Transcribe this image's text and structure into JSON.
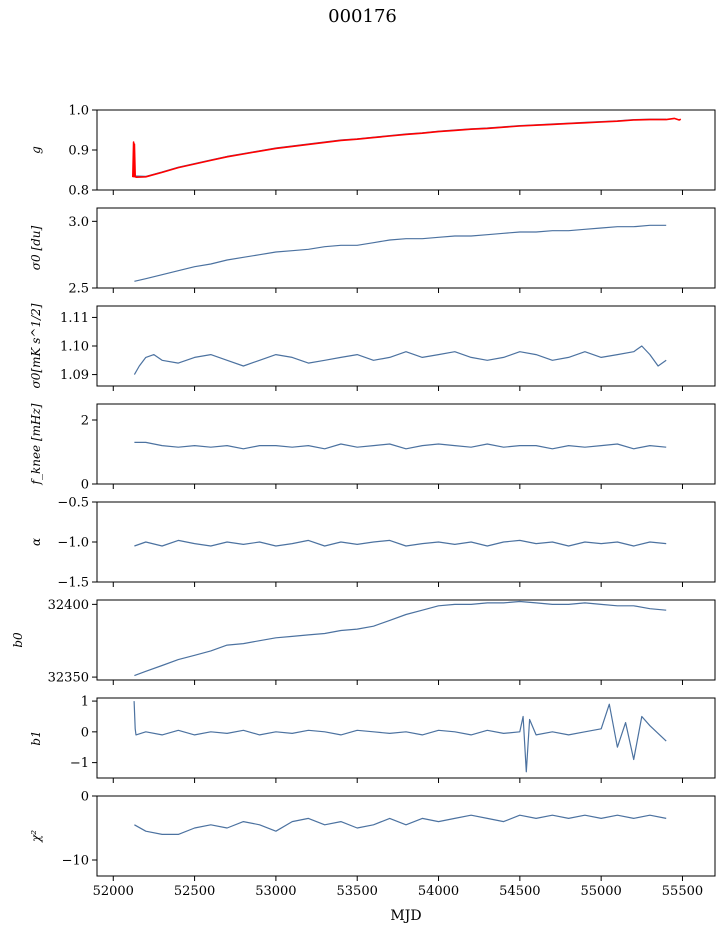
{
  "title": "000176",
  "xlabel": "MJD",
  "colors": {
    "series": "#4c72a0",
    "model": "#ff0000",
    "axes": "#000000"
  },
  "chart_data": [
    {
      "type": "line",
      "ylabel": "g",
      "ylim": [
        0.8,
        1.0
      ],
      "yticks": [
        "1.0",
        "0.9",
        "0.8"
      ],
      "yticks_values": [
        1.0,
        0.9,
        0.8
      ],
      "series": [
        {
          "color": "#4c72a0",
          "x": [
            52130,
            52200,
            52300,
            52400,
            52500,
            52600,
            52700,
            52800,
            52900,
            53000,
            53100,
            53200,
            53300,
            53400,
            53500,
            53600,
            53700,
            53800,
            53900,
            54000,
            54100,
            54200,
            54300,
            54400,
            54500,
            54600,
            54700,
            54800,
            54900,
            55000,
            55100,
            55200,
            55300,
            55400
          ],
          "y": [
            0.835,
            0.834,
            0.845,
            0.857,
            0.866,
            0.875,
            0.884,
            0.891,
            0.898,
            0.905,
            0.91,
            0.915,
            0.92,
            0.925,
            0.928,
            0.932,
            0.936,
            0.94,
            0.943,
            0.947,
            0.95,
            0.953,
            0.955,
            0.958,
            0.961,
            0.963,
            0.965,
            0.967,
            0.969,
            0.971,
            0.973,
            0.976,
            0.977,
            0.977
          ]
        },
        {
          "color": "#ff0000",
          "x": [
            52120,
            52125,
            52128,
            52130,
            52135,
            52140,
            52200,
            52300,
            52400,
            52500,
            52600,
            52700,
            52800,
            52900,
            53000,
            53100,
            53200,
            53300,
            53400,
            53500,
            53600,
            53700,
            53800,
            53900,
            54000,
            54100,
            54200,
            54300,
            54400,
            54500,
            54600,
            54700,
            54800,
            54900,
            55000,
            55100,
            55200,
            55300,
            55400,
            55450,
            55480,
            55490
          ],
          "y": [
            0.832,
            0.92,
            0.833,
            0.915,
            0.834,
            0.832,
            0.833,
            0.844,
            0.856,
            0.865,
            0.874,
            0.883,
            0.89,
            0.897,
            0.904,
            0.909,
            0.914,
            0.919,
            0.924,
            0.927,
            0.931,
            0.935,
            0.939,
            0.942,
            0.946,
            0.949,
            0.952,
            0.954,
            0.957,
            0.96,
            0.962,
            0.964,
            0.966,
            0.968,
            0.97,
            0.972,
            0.975,
            0.976,
            0.976,
            0.979,
            0.975,
            0.977
          ]
        }
      ]
    },
    {
      "type": "line",
      "ylabel": "σ0 [du]",
      "ylim": [
        2.5,
        3.1
      ],
      "yticks": [
        "3.0",
        "2.5"
      ],
      "yticks_values": [
        3.0,
        2.5
      ],
      "series": [
        {
          "color": "#4c72a0",
          "x": [
            52130,
            52200,
            52300,
            52400,
            52500,
            52600,
            52700,
            52800,
            52900,
            53000,
            53100,
            53200,
            53300,
            53400,
            53500,
            53600,
            53700,
            53800,
            53900,
            54000,
            54100,
            54200,
            54300,
            54400,
            54500,
            54600,
            54700,
            54800,
            54900,
            55000,
            55100,
            55200,
            55300,
            55400
          ],
          "y": [
            2.55,
            2.57,
            2.6,
            2.63,
            2.66,
            2.68,
            2.71,
            2.73,
            2.75,
            2.77,
            2.78,
            2.79,
            2.81,
            2.82,
            2.82,
            2.84,
            2.86,
            2.87,
            2.87,
            2.88,
            2.89,
            2.89,
            2.9,
            2.91,
            2.92,
            2.92,
            2.93,
            2.93,
            2.94,
            2.95,
            2.96,
            2.96,
            2.97,
            2.97
          ]
        }
      ]
    },
    {
      "type": "line",
      "ylabel": "σ0[mK s^1/2]",
      "ylim": [
        1.086,
        1.114
      ],
      "yticks": [
        "1.11",
        "1.10",
        "1.09"
      ],
      "yticks_values": [
        1.11,
        1.1,
        1.09
      ],
      "series": [
        {
          "color": "#4c72a0",
          "x": [
            52130,
            52160,
            52200,
            52250,
            52300,
            52400,
            52500,
            52600,
            52700,
            52800,
            52900,
            53000,
            53100,
            53200,
            53300,
            53400,
            53500,
            53600,
            53700,
            53800,
            53900,
            54000,
            54100,
            54200,
            54300,
            54400,
            54500,
            54600,
            54700,
            54800,
            54900,
            55000,
            55100,
            55200,
            55250,
            55300,
            55350,
            55400
          ],
          "y": [
            1.09,
            1.093,
            1.096,
            1.097,
            1.095,
            1.094,
            1.096,
            1.097,
            1.095,
            1.093,
            1.095,
            1.097,
            1.096,
            1.094,
            1.095,
            1.096,
            1.097,
            1.095,
            1.096,
            1.098,
            1.096,
            1.097,
            1.098,
            1.096,
            1.095,
            1.096,
            1.098,
            1.097,
            1.095,
            1.096,
            1.098,
            1.096,
            1.097,
            1.098,
            1.1,
            1.097,
            1.093,
            1.095
          ]
        }
      ]
    },
    {
      "type": "line",
      "ylabel": "f_knee [mHz]",
      "ylim": [
        0,
        2.5
      ],
      "yticks": [
        "2",
        "0"
      ],
      "yticks_values": [
        2,
        0
      ],
      "series": [
        {
          "color": "#4c72a0",
          "x": [
            52130,
            52200,
            52300,
            52400,
            52500,
            52600,
            52700,
            52800,
            52900,
            53000,
            53100,
            53200,
            53300,
            53400,
            53500,
            53600,
            53700,
            53800,
            53900,
            54000,
            54100,
            54200,
            54300,
            54400,
            54500,
            54600,
            54700,
            54800,
            54900,
            55000,
            55100,
            55200,
            55300,
            55400
          ],
          "y": [
            1.3,
            1.3,
            1.2,
            1.15,
            1.2,
            1.15,
            1.2,
            1.1,
            1.2,
            1.2,
            1.15,
            1.2,
            1.1,
            1.25,
            1.15,
            1.2,
            1.25,
            1.1,
            1.2,
            1.25,
            1.2,
            1.15,
            1.25,
            1.15,
            1.2,
            1.2,
            1.1,
            1.2,
            1.15,
            1.2,
            1.25,
            1.1,
            1.2,
            1.15
          ]
        }
      ]
    },
    {
      "type": "line",
      "ylabel": "α",
      "ylim": [
        -1.5,
        -0.5
      ],
      "yticks": [
        "−0.5",
        "−1.0",
        "−1.5"
      ],
      "yticks_values": [
        -0.5,
        -1.0,
        -1.5
      ],
      "series": [
        {
          "color": "#4c72a0",
          "x": [
            52130,
            52200,
            52300,
            52400,
            52500,
            52600,
            52700,
            52800,
            52900,
            53000,
            53100,
            53200,
            53300,
            53400,
            53500,
            53600,
            53700,
            53800,
            53900,
            54000,
            54100,
            54200,
            54300,
            54400,
            54500,
            54600,
            54700,
            54800,
            54900,
            55000,
            55100,
            55200,
            55300,
            55400
          ],
          "y": [
            -1.05,
            -1.0,
            -1.05,
            -0.98,
            -1.02,
            -1.05,
            -1.0,
            -1.03,
            -1.0,
            -1.05,
            -1.02,
            -0.98,
            -1.05,
            -1.0,
            -1.03,
            -1.0,
            -0.98,
            -1.05,
            -1.02,
            -1.0,
            -1.03,
            -1.0,
            -1.05,
            -1.0,
            -0.98,
            -1.02,
            -1.0,
            -1.05,
            -1.0,
            -1.02,
            -1.0,
            -1.05,
            -1.0,
            -1.02
          ]
        }
      ]
    },
    {
      "type": "line",
      "ylabel": "b0",
      "ylim": [
        32348,
        32403
      ],
      "yticks": [
        "32400",
        "32350"
      ],
      "yticks_values": [
        32400,
        32350
      ],
      "series": [
        {
          "color": "#4c72a0",
          "x": [
            52130,
            52200,
            52300,
            52400,
            52500,
            52600,
            52700,
            52800,
            52900,
            53000,
            53100,
            53200,
            53300,
            53400,
            53500,
            53600,
            53700,
            53800,
            53900,
            54000,
            54100,
            54200,
            54300,
            54400,
            54500,
            54600,
            54700,
            54800,
            54900,
            55000,
            55100,
            55200,
            55300,
            55400
          ],
          "y": [
            32351,
            32354,
            32358,
            32362,
            32365,
            32368,
            32372,
            32373,
            32375,
            32377,
            32378,
            32379,
            32380,
            32382,
            32383,
            32385,
            32389,
            32393,
            32396,
            32399,
            32400,
            32400,
            32401,
            32401,
            32402,
            32401,
            32400,
            32400,
            32401,
            32400,
            32399,
            32399,
            32397,
            32396
          ]
        }
      ]
    },
    {
      "type": "line",
      "ylabel": "b1",
      "ylim": [
        -1.5,
        1.1
      ],
      "yticks": [
        "1",
        "0",
        "−1"
      ],
      "yticks_values": [
        1,
        0,
        -1
      ],
      "series": [
        {
          "color": "#4c72a0",
          "x": [
            52128,
            52135,
            52140,
            52200,
            52300,
            52400,
            52500,
            52600,
            52700,
            52800,
            52900,
            53000,
            53100,
            53200,
            53300,
            53400,
            53500,
            53600,
            53700,
            53800,
            53900,
            54000,
            54100,
            54200,
            54300,
            54400,
            54500,
            54520,
            54540,
            54560,
            54600,
            54700,
            54800,
            54900,
            55000,
            55050,
            55100,
            55150,
            55200,
            55250,
            55300,
            55400
          ],
          "y": [
            1.0,
            0.1,
            -0.1,
            0.0,
            -0.1,
            0.05,
            -0.1,
            0.0,
            -0.05,
            0.05,
            -0.1,
            0.0,
            -0.05,
            0.05,
            0.0,
            -0.1,
            0.05,
            0.0,
            -0.05,
            0.0,
            -0.1,
            0.05,
            0.0,
            -0.1,
            0.05,
            -0.05,
            0.0,
            0.5,
            -1.3,
            0.4,
            -0.1,
            0.0,
            -0.1,
            0.0,
            0.1,
            0.9,
            -0.5,
            0.3,
            -0.9,
            0.5,
            0.2,
            -0.3
          ]
        }
      ]
    },
    {
      "type": "line",
      "ylabel": "χ²",
      "ylim": [
        -12.5,
        0
      ],
      "yticks": [
        "0",
        "−10"
      ],
      "yticks_values": [
        0,
        -10
      ],
      "series": [
        {
          "color": "#4c72a0",
          "x": [
            52130,
            52200,
            52300,
            52400,
            52500,
            52600,
            52700,
            52800,
            52900,
            53000,
            53100,
            53200,
            53300,
            53400,
            53500,
            53600,
            53700,
            53800,
            53900,
            54000,
            54100,
            54200,
            54300,
            54400,
            54500,
            54600,
            54700,
            54800,
            54900,
            55000,
            55100,
            55200,
            55300,
            55400
          ],
          "y": [
            -4.5,
            -5.5,
            -6.0,
            -6.0,
            -5.0,
            -4.5,
            -5.0,
            -4.0,
            -4.5,
            -5.5,
            -4.0,
            -3.5,
            -4.5,
            -4.0,
            -5.0,
            -4.5,
            -3.5,
            -4.5,
            -3.5,
            -4.0,
            -3.5,
            -3.0,
            -3.5,
            -4.0,
            -3.0,
            -3.5,
            -3.0,
            -3.5,
            -3.0,
            -3.5,
            -3.0,
            -3.5,
            -3.0,
            -3.5
          ]
        }
      ]
    }
  ],
  "xaxis": {
    "xlim": [
      51900,
      55700
    ],
    "xticks": [
      "52000",
      "52500",
      "53000",
      "53500",
      "54000",
      "54500",
      "55000",
      "55500"
    ],
    "xticks_values": [
      52000,
      52500,
      53000,
      53500,
      54000,
      54500,
      55000,
      55500
    ]
  }
}
